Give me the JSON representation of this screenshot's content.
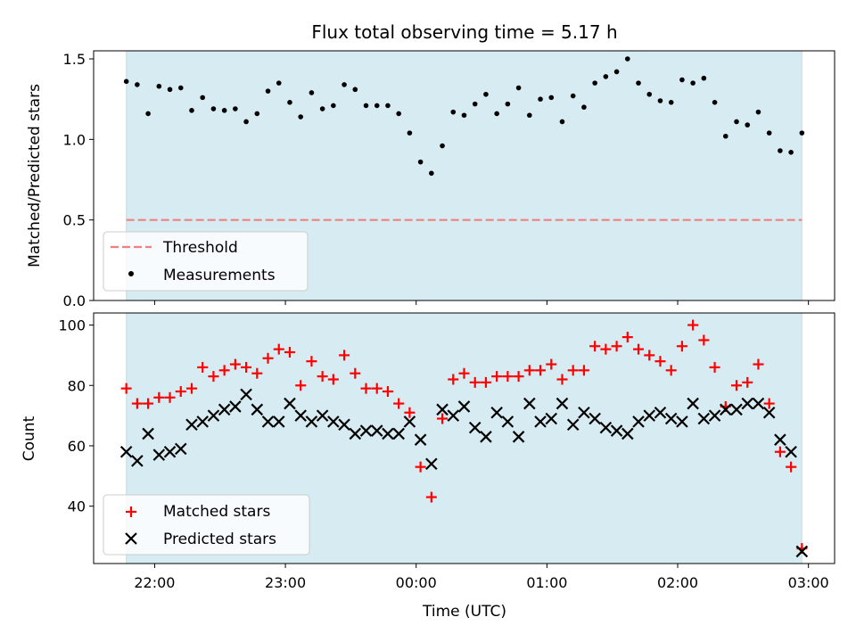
{
  "chart_data": [
    {
      "type": "scatter",
      "title": "Flux total observing time = 5.17 h",
      "xlabel": "",
      "ylabel": "Matched/Predicted stars",
      "ylim": [
        0,
        1.55
      ],
      "yticks": [
        "0.0",
        "0.5",
        "1.0",
        "1.5"
      ],
      "xticks": [
        "22:00",
        "23:00",
        "00:00",
        "01:00",
        "02:00",
        "03:00"
      ],
      "xlim": [
        "21:32",
        "03:12"
      ],
      "observing_window": [
        "21:47",
        "02:57"
      ],
      "legend_position": "lower-left",
      "threshold": {
        "name": "Threshold",
        "value": 0.5,
        "color": "#f08080"
      },
      "series": [
        {
          "name": "Measurements",
          "color": "#000000",
          "x": [
            "21:47",
            "21:52",
            "21:57",
            "22:02",
            "22:07",
            "22:12",
            "22:17",
            "22:22",
            "22:27",
            "22:32",
            "22:37",
            "22:42",
            "22:47",
            "22:52",
            "22:57",
            "23:02",
            "23:07",
            "23:12",
            "23:17",
            "23:22",
            "23:27",
            "23:32",
            "23:37",
            "23:42",
            "23:47",
            "23:52",
            "23:57",
            "00:02",
            "00:07",
            "00:12",
            "00:17",
            "00:22",
            "00:27",
            "00:32",
            "00:37",
            "00:42",
            "00:47",
            "00:52",
            "00:57",
            "01:02",
            "01:07",
            "01:12",
            "01:17",
            "01:22",
            "01:27",
            "01:32",
            "01:37",
            "01:42",
            "01:47",
            "01:52",
            "01:57",
            "02:02",
            "02:07",
            "02:12",
            "02:17",
            "02:22",
            "02:27",
            "02:32",
            "02:37",
            "02:42",
            "02:47",
            "02:52",
            "02:57"
          ],
          "y": [
            1.36,
            1.34,
            1.16,
            1.33,
            1.31,
            1.32,
            1.18,
            1.26,
            1.19,
            1.18,
            1.19,
            1.11,
            1.16,
            1.3,
            1.35,
            1.23,
            1.14,
            1.29,
            1.19,
            1.21,
            1.34,
            1.31,
            1.21,
            1.21,
            1.21,
            1.16,
            1.04,
            0.86,
            0.79,
            0.96,
            1.17,
            1.15,
            1.22,
            1.28,
            1.16,
            1.22,
            1.32,
            1.15,
            1.25,
            1.26,
            1.11,
            1.27,
            1.2,
            1.35,
            1.39,
            1.42,
            1.5,
            1.35,
            1.28,
            1.24,
            1.23,
            1.37,
            1.35,
            1.38,
            1.23,
            1.02,
            1.11,
            1.09,
            1.17,
            1.04,
            0.93,
            0.92,
            1.04
          ]
        }
      ]
    },
    {
      "type": "scatter",
      "title": "",
      "xlabel": "Time (UTC)",
      "ylabel": "Count",
      "ylim": [
        21,
        104
      ],
      "yticks": [
        "40",
        "60",
        "80",
        "100"
      ],
      "xticks": [
        "22:00",
        "23:00",
        "00:00",
        "01:00",
        "02:00",
        "03:00"
      ],
      "xlim": [
        "21:32",
        "03:12"
      ],
      "observing_window": [
        "21:47",
        "02:57"
      ],
      "legend_position": "lower-left",
      "x": [
        "21:47",
        "21:52",
        "21:57",
        "22:02",
        "22:07",
        "22:12",
        "22:17",
        "22:22",
        "22:27",
        "22:32",
        "22:37",
        "22:42",
        "22:47",
        "22:52",
        "22:57",
        "23:02",
        "23:07",
        "23:12",
        "23:17",
        "23:22",
        "23:27",
        "23:32",
        "23:37",
        "23:42",
        "23:47",
        "23:52",
        "23:57",
        "00:02",
        "00:07",
        "00:12",
        "00:17",
        "00:22",
        "00:27",
        "00:32",
        "00:37",
        "00:42",
        "00:47",
        "00:52",
        "00:57",
        "01:02",
        "01:07",
        "01:12",
        "01:17",
        "01:22",
        "01:27",
        "01:32",
        "01:37",
        "01:42",
        "01:47",
        "01:52",
        "01:57",
        "02:02",
        "02:07",
        "02:12",
        "02:17",
        "02:22",
        "02:27",
        "02:32",
        "02:37",
        "02:42",
        "02:47",
        "02:52",
        "02:57"
      ],
      "series": [
        {
          "name": "Matched stars",
          "marker": "plus",
          "color": "#ff0000",
          "values": [
            79,
            74,
            74,
            76,
            76,
            78,
            79,
            86,
            83,
            85,
            87,
            86,
            84,
            89,
            92,
            91,
            80,
            88,
            83,
            82,
            90,
            84,
            79,
            79,
            78,
            74,
            71,
            53,
            43,
            69,
            82,
            84,
            81,
            81,
            83,
            83,
            83,
            85,
            85,
            87,
            82,
            85,
            85,
            93,
            92,
            93,
            96,
            92,
            90,
            88,
            85,
            93,
            100,
            95,
            86,
            73,
            80,
            81,
            87,
            74,
            58,
            53,
            26
          ]
        },
        {
          "name": "Predicted stars",
          "marker": "x",
          "color": "#000000",
          "values": [
            58,
            55,
            64,
            57,
            58,
            59,
            67,
            68,
            70,
            72,
            73,
            77,
            72,
            68,
            68,
            74,
            70,
            68,
            70,
            68,
            67,
            64,
            65,
            65,
            64,
            64,
            68,
            62,
            54,
            72,
            70,
            73,
            66,
            63,
            71,
            68,
            63,
            74,
            68,
            69,
            74,
            67,
            71,
            69,
            66,
            65,
            64,
            68,
            70,
            71,
            69,
            68,
            74,
            69,
            70,
            72,
            72,
            74,
            74,
            71,
            62,
            58,
            25
          ]
        }
      ]
    }
  ]
}
